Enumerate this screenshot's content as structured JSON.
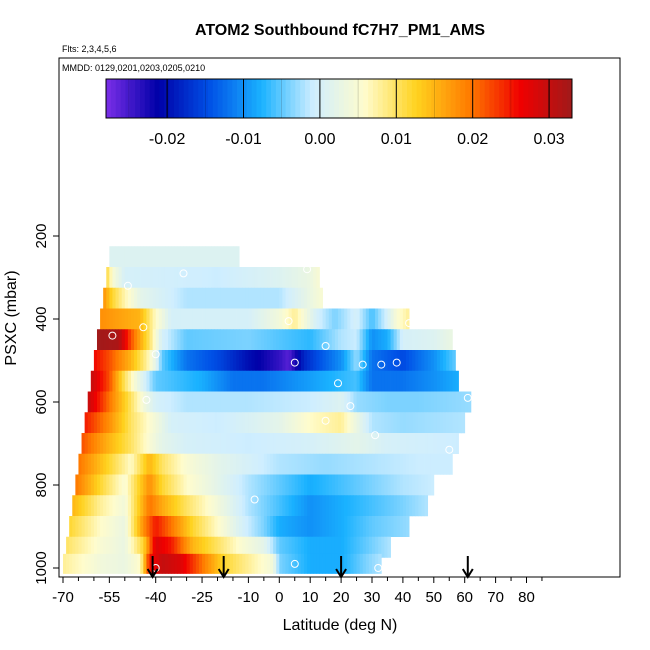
{
  "chart_data": {
    "type": "heatmap",
    "title": "ATOM2 Southbound fC7H7_PM1_AMS",
    "annotations": {
      "flights": "Flts: 2,3,4,5,6",
      "dates": "MMDD: 0129,0201,0203,0205,0210"
    },
    "xlabel": "Latitude (deg N)",
    "ylabel": "PSXC (mbar)",
    "xlim": [
      -70,
      85
    ],
    "ylim": [
      1000,
      100
    ],
    "x_ticks": [
      -70,
      -55,
      -40,
      -25,
      -10,
      0,
      10,
      20,
      30,
      40,
      50,
      60,
      70,
      80
    ],
    "x_tick_labels": [
      "-70",
      "-55",
      "-40",
      "-25",
      "-10",
      "0",
      "10",
      "20",
      "30",
      "40",
      "50",
      "60",
      "70",
      "80"
    ],
    "y_ticks": [
      200,
      400,
      600,
      800,
      1000
    ],
    "y_tick_labels": [
      "200",
      "400",
      "600",
      "800",
      "1000"
    ],
    "colorbar": {
      "range": [
        -0.028,
        0.033
      ],
      "ticks": [
        -0.02,
        -0.01,
        0.0,
        0.01,
        0.02,
        0.03
      ],
      "tick_labels": [
        "-0.02",
        "-0.01",
        "0.00",
        "0.01",
        "0.02",
        "0.03"
      ],
      "colors": [
        "#7b2ee8",
        "#0000a8",
        "#0050e6",
        "#1ab2ff",
        "#cfeeff",
        "#fffccc",
        "#ffd21e",
        "#ff7d00",
        "#f00000",
        "#a01a1a"
      ]
    },
    "arrows_latitude": [
      -41,
      -18,
      20,
      61
    ],
    "rows": [
      {
        "p": 250,
        "start": -55,
        "end": -13,
        "keys": [
          [
            -55,
            0.001
          ],
          [
            -13,
            0.001
          ]
        ]
      },
      {
        "p": 300,
        "start": -56,
        "end": 13,
        "keys": [
          [
            -56,
            0.012
          ],
          [
            -54,
            0.005
          ],
          [
            -50,
            0.0
          ],
          [
            -20,
            -0.001
          ],
          [
            0,
            0.001
          ],
          [
            10,
            0.003
          ],
          [
            13,
            0.005
          ]
        ]
      },
      {
        "p": 350,
        "start": -57,
        "end": 14,
        "keys": [
          [
            -57,
            0.018
          ],
          [
            -54,
            0.012
          ],
          [
            -50,
            0.007
          ],
          [
            -45,
            0.002
          ],
          [
            -30,
            -0.002
          ],
          [
            0,
            -0.002
          ],
          [
            10,
            0.003
          ],
          [
            14,
            0.005
          ]
        ]
      },
      {
        "p": 400,
        "start": -58,
        "end": 42,
        "keys": [
          [
            -58,
            0.018
          ],
          [
            -45,
            0.015
          ],
          [
            -40,
            0.006
          ],
          [
            -35,
            0.0
          ],
          [
            -10,
            0.0
          ],
          [
            0,
            0.004
          ],
          [
            5,
            0.008
          ],
          [
            12,
            0.0
          ],
          [
            18,
            -0.004
          ],
          [
            25,
            0.0
          ],
          [
            30,
            -0.006
          ],
          [
            35,
            0.0
          ],
          [
            38,
            0.005
          ],
          [
            42,
            0.008
          ]
        ]
      },
      {
        "p": 450,
        "start": -59,
        "end": 56,
        "keys": [
          [
            -59,
            0.033
          ],
          [
            -52,
            0.032
          ],
          [
            -48,
            0.022
          ],
          [
            -42,
            0.01
          ],
          [
            -38,
            0.0
          ],
          [
            -30,
            -0.005
          ],
          [
            -10,
            -0.004
          ],
          [
            10,
            -0.007
          ],
          [
            20,
            -0.002
          ],
          [
            25,
            -0.001
          ],
          [
            30,
            -0.01
          ],
          [
            35,
            -0.008
          ],
          [
            40,
            0.0
          ],
          [
            50,
            0.001
          ],
          [
            56,
            0.003
          ]
        ]
      },
      {
        "p": 500,
        "start": -60,
        "end": 57,
        "keys": [
          [
            -60,
            0.026
          ],
          [
            -55,
            0.022
          ],
          [
            -48,
            0.015
          ],
          [
            -43,
            0.008
          ],
          [
            -40,
            0.002
          ],
          [
            -38,
            -0.005
          ],
          [
            -30,
            -0.012
          ],
          [
            -20,
            -0.015
          ],
          [
            -10,
            -0.02
          ],
          [
            0,
            -0.024
          ],
          [
            3,
            -0.026
          ],
          [
            8,
            -0.018
          ],
          [
            12,
            -0.015
          ],
          [
            20,
            -0.01
          ],
          [
            25,
            -0.003
          ],
          [
            30,
            -0.012
          ],
          [
            40,
            -0.015
          ],
          [
            50,
            -0.01
          ],
          [
            57,
            -0.005
          ]
        ]
      },
      {
        "p": 550,
        "start": -61,
        "end": 58,
        "keys": [
          [
            -61,
            0.03
          ],
          [
            -55,
            0.022
          ],
          [
            -50,
            0.01
          ],
          [
            -45,
            0.002
          ],
          [
            -40,
            -0.005
          ],
          [
            -25,
            -0.008
          ],
          [
            -15,
            -0.012
          ],
          [
            -5,
            -0.012
          ],
          [
            5,
            -0.01
          ],
          [
            15,
            -0.008
          ],
          [
            25,
            -0.006
          ],
          [
            30,
            -0.012
          ],
          [
            40,
            -0.012
          ],
          [
            50,
            -0.01
          ],
          [
            58,
            -0.008
          ]
        ]
      },
      {
        "p": 600,
        "start": -62,
        "end": 62,
        "keys": [
          [
            -62,
            0.03
          ],
          [
            -55,
            0.02
          ],
          [
            -48,
            0.01
          ],
          [
            -43,
            0.003
          ],
          [
            -40,
            0.0
          ],
          [
            -30,
            -0.002
          ],
          [
            -10,
            -0.002
          ],
          [
            10,
            -0.001
          ],
          [
            20,
            0.001
          ],
          [
            25,
            -0.003
          ],
          [
            35,
            -0.004
          ],
          [
            45,
            -0.004
          ],
          [
            62,
            -0.003
          ]
        ]
      },
      {
        "p": 650,
        "start": -63,
        "end": 60,
        "keys": [
          [
            -63,
            0.025
          ],
          [
            -55,
            0.018
          ],
          [
            -48,
            0.01
          ],
          [
            -40,
            0.004
          ],
          [
            -35,
            0.0
          ],
          [
            -20,
            -0.001
          ],
          [
            0,
            0.002
          ],
          [
            10,
            0.006
          ],
          [
            20,
            0.008
          ],
          [
            25,
            0.003
          ],
          [
            30,
            -0.002
          ],
          [
            40,
            -0.003
          ],
          [
            60,
            -0.002
          ]
        ]
      },
      {
        "p": 700,
        "start": -64,
        "end": 58,
        "keys": [
          [
            -64,
            0.022
          ],
          [
            -55,
            0.015
          ],
          [
            -48,
            0.01
          ],
          [
            -42,
            0.005
          ],
          [
            -38,
            0.002
          ],
          [
            -30,
            0.0
          ],
          [
            -10,
            -0.001
          ],
          [
            10,
            0.0
          ],
          [
            25,
            0.002
          ],
          [
            35,
            0.0
          ],
          [
            58,
            -0.001
          ]
        ]
      },
      {
        "p": 750,
        "start": -65,
        "end": 56,
        "keys": [
          [
            -65,
            0.02
          ],
          [
            -55,
            0.012
          ],
          [
            -48,
            0.006
          ],
          [
            -42,
            0.015
          ],
          [
            -38,
            0.01
          ],
          [
            -30,
            0.005
          ],
          [
            -20,
            0.002
          ],
          [
            0,
            -0.002
          ],
          [
            15,
            -0.003
          ],
          [
            30,
            -0.002
          ],
          [
            45,
            -0.001
          ],
          [
            56,
            -0.001
          ]
        ]
      },
      {
        "p": 800,
        "start": -66,
        "end": 50,
        "keys": [
          [
            -66,
            0.02
          ],
          [
            -58,
            0.012
          ],
          [
            -50,
            0.005
          ],
          [
            -42,
            0.018
          ],
          [
            -38,
            0.012
          ],
          [
            -30,
            0.006
          ],
          [
            -20,
            0.002
          ],
          [
            -10,
            -0.002
          ],
          [
            0,
            -0.005
          ],
          [
            10,
            -0.008
          ],
          [
            20,
            -0.006
          ],
          [
            30,
            -0.004
          ],
          [
            40,
            -0.002
          ],
          [
            50,
            -0.001
          ]
        ]
      },
      {
        "p": 850,
        "start": -67,
        "end": 48,
        "keys": [
          [
            -67,
            0.015
          ],
          [
            -58,
            0.008
          ],
          [
            -50,
            0.004
          ],
          [
            -42,
            0.02
          ],
          [
            -38,
            0.016
          ],
          [
            -30,
            0.01
          ],
          [
            -20,
            0.004
          ],
          [
            -10,
            -0.002
          ],
          [
            0,
            -0.006
          ],
          [
            10,
            -0.01
          ],
          [
            20,
            -0.008
          ],
          [
            30,
            -0.006
          ],
          [
            40,
            -0.004
          ],
          [
            48,
            -0.002
          ]
        ]
      },
      {
        "p": 900,
        "start": -68,
        "end": 42,
        "keys": [
          [
            -68,
            0.012
          ],
          [
            -58,
            0.006
          ],
          [
            -50,
            0.003
          ],
          [
            -44,
            0.018
          ],
          [
            -40,
            0.025
          ],
          [
            -35,
            0.02
          ],
          [
            -28,
            0.012
          ],
          [
            -20,
            0.006
          ],
          [
            -12,
            0.0
          ],
          [
            -5,
            -0.004
          ],
          [
            0,
            -0.008
          ],
          [
            10,
            -0.01
          ],
          [
            20,
            -0.008
          ],
          [
            30,
            -0.005
          ],
          [
            42,
            -0.003
          ]
        ]
      },
      {
        "p": 950,
        "start": -69,
        "end": 36,
        "keys": [
          [
            -69,
            0.01
          ],
          [
            -58,
            0.005
          ],
          [
            -50,
            0.003
          ],
          [
            -44,
            0.012
          ],
          [
            -40,
            0.028
          ],
          [
            -35,
            0.025
          ],
          [
            -28,
            0.015
          ],
          [
            -20,
            0.01
          ],
          [
            -12,
            0.005
          ],
          [
            -5,
            0.002
          ],
          [
            0,
            -0.005
          ],
          [
            10,
            -0.008
          ],
          [
            20,
            -0.008
          ],
          [
            28,
            -0.005
          ],
          [
            36,
            -0.002
          ]
        ]
      },
      {
        "p": 990,
        "start": -70,
        "end": 33,
        "keys": [
          [
            -70,
            0.008
          ],
          [
            -58,
            0.004
          ],
          [
            -50,
            0.003
          ],
          [
            -45,
            0.006
          ],
          [
            -42,
            0.025
          ],
          [
            -38,
            0.03
          ],
          [
            -32,
            0.028
          ],
          [
            -25,
            0.02
          ],
          [
            -18,
            0.012
          ],
          [
            -10,
            0.008
          ],
          [
            -2,
            0.004
          ],
          [
            0,
            -0.004
          ],
          [
            10,
            -0.008
          ],
          [
            20,
            -0.008
          ],
          [
            28,
            -0.004
          ],
          [
            33,
            -0.002
          ]
        ]
      }
    ],
    "points": [
      [
        -31,
        290
      ],
      [
        -49,
        320
      ],
      [
        9,
        280
      ],
      [
        -44,
        420
      ],
      [
        3,
        405
      ],
      [
        42,
        410
      ],
      [
        -54,
        440
      ],
      [
        15,
        465
      ],
      [
        -40,
        485
      ],
      [
        5,
        505
      ],
      [
        27,
        510
      ],
      [
        33,
        510
      ],
      [
        38,
        505
      ],
      [
        19,
        555
      ],
      [
        -43,
        595
      ],
      [
        23,
        610
      ],
      [
        61,
        590
      ],
      [
        15,
        645
      ],
      [
        31,
        680
      ],
      [
        55,
        715
      ],
      [
        -8,
        835
      ],
      [
        -40,
        1000
      ],
      [
        5,
        990
      ],
      [
        32,
        1000
      ]
    ]
  }
}
